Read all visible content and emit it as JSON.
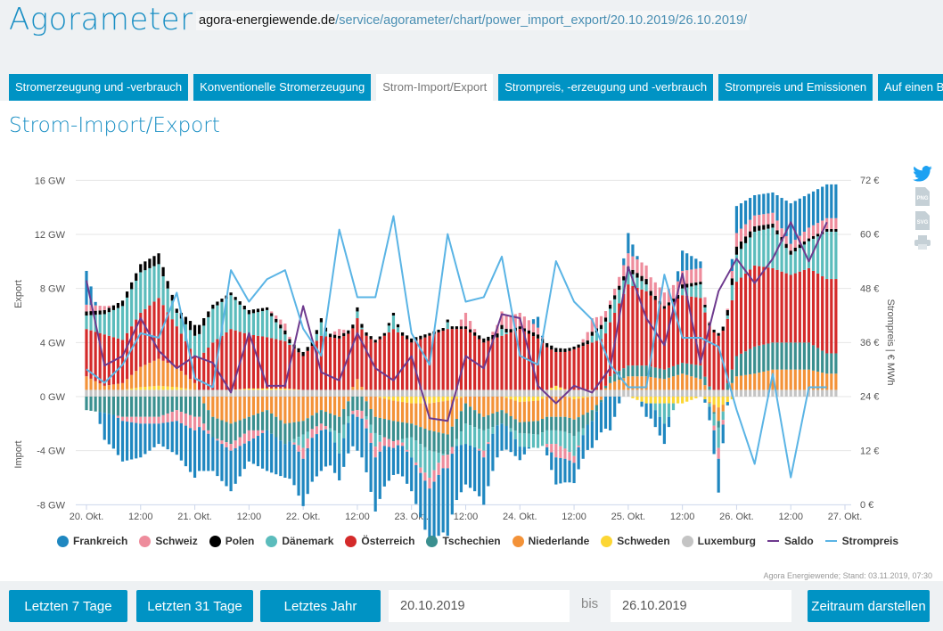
{
  "header": {
    "logo": "Agorameter",
    "url_domain": "agora-energiewende.de",
    "url_path": "/service/agorameter/chart/power_import_export/20.10.2019/26.10.2019/"
  },
  "tabs": [
    {
      "label": "Stromerzeugung und -verbrauch",
      "active": false
    },
    {
      "label": "Konventionelle Stromerzeugung",
      "active": false
    },
    {
      "label": "Strom-Import/Export",
      "active": true
    },
    {
      "label": "Strompreis, -erzeugung und -verbrauch",
      "active": false
    },
    {
      "label": "Strompreis und Emissionen",
      "active": false
    },
    {
      "label": "Auf einen Blick",
      "active": false
    }
  ],
  "page_title": "Strom-Import/Export",
  "side_icons": [
    "twitter-icon",
    "png-download-icon",
    "svg-download-icon",
    "print-icon"
  ],
  "side_labels": {
    "png": "PNG",
    "svg": "SVG"
  },
  "credits": "Agora Energiewende; Stand: 03.11.2019, 07:30",
  "chart_data": {
    "type": "bar",
    "stacked": true,
    "x_interval_hours": 4,
    "x_start": "20.10.2019 00:00",
    "x_ticks": [
      "20. Okt.",
      "12:00",
      "21. Okt.",
      "12:00",
      "22. Okt.",
      "12:00",
      "23. Okt.",
      "12:00",
      "24. Okt.",
      "12:00",
      "25. Okt.",
      "12:00",
      "26. Okt.",
      "12:00",
      "27. Okt."
    ],
    "y_left": {
      "label_top": "Export",
      "label_bottom": "Import",
      "ticks": [
        "16 GW",
        "12 GW",
        "8 GW",
        "4 GW",
        "0 GW",
        "-4 GW",
        "-8 GW"
      ],
      "range": [
        -8,
        16
      ],
      "unit": "GW"
    },
    "y_right": {
      "label": "Strompreis | € MWh",
      "ticks": [
        "72 €",
        "60 €",
        "48 €",
        "36 €",
        "24 €",
        "12 €",
        "0 €"
      ],
      "range": [
        0,
        72
      ]
    },
    "grid": true,
    "legend_position": "bottom",
    "series": [
      {
        "name": "Frankreich",
        "color": "#1f87c0",
        "values": [
          2.5,
          -2,
          -3,
          -2.5,
          -1.5,
          -2.5,
          -3.5,
          -2.5,
          -3,
          -1.5,
          -3,
          -2.5,
          -3.5,
          -3,
          -2,
          -2.5,
          -4,
          -2,
          -2.5,
          -4,
          -5,
          -3,
          -3.5,
          -2,
          -1,
          0.8,
          -2,
          -1.5,
          -2,
          -2.5,
          1.5,
          -1,
          -1.5,
          1.5,
          0.5,
          -2.5,
          2,
          1.5,
          1.5,
          3.0,
          2.5,
          2.5
        ]
      },
      {
        "name": "Schweiz",
        "color": "#ee8c9c",
        "values": [
          0.5,
          0.3,
          -0.3,
          -0.5,
          -0.5,
          -0.8,
          -1.0,
          0,
          -0.5,
          -0.8,
          0,
          0.5,
          -0.8,
          -0.5,
          0.5,
          -0.5,
          -0.8,
          -0.5,
          0,
          -0.8,
          -1.0,
          1.0,
          -0.5,
          1.0,
          1.0,
          0.5,
          -1.0,
          -0.5,
          1.0,
          0.3,
          1.0,
          1.0,
          1.0,
          1.0,
          1.0,
          -0.8,
          1.0,
          0.8,
          0.8,
          0.5,
          0.8,
          0.8
        ]
      },
      {
        "name": "Polen",
        "color": "#000000",
        "values": [
          0.3,
          0.3,
          0.4,
          0.6,
          0.8,
          0.3,
          0.8,
          0.3,
          0.2,
          0.3,
          0.2,
          0.3,
          0.3,
          0.3,
          0.2,
          0.3,
          0.2,
          0.2,
          0.3,
          0.2,
          0.2,
          0.2,
          0.3,
          0.3,
          0.2,
          0.3,
          0.3,
          0.2,
          0.3,
          0.3,
          0.3,
          0.4,
          0.2,
          0.3,
          0.2,
          0.2,
          0.6,
          0.4,
          0.3,
          0.3,
          0.2,
          0.2
        ]
      },
      {
        "name": "Dänemark",
        "color": "#5bbcbc",
        "values": [
          1.0,
          1.5,
          2.5,
          3.0,
          2.5,
          1.0,
          1.5,
          2.5,
          2.5,
          1.5,
          2.0,
          0.5,
          -1.0,
          1.0,
          -1.5,
          0.5,
          -1.0,
          1.0,
          -1.5,
          -2,
          0.5,
          -1.5,
          -1.5,
          0.5,
          -1.0,
          -1,
          -1.0,
          -1.5,
          0.5,
          1.0,
          1.0,
          0.5,
          -1.5,
          0.5,
          1,
          -1.5,
          2.0,
          2.5,
          3.0,
          1.5,
          2.0,
          3.5
        ]
      },
      {
        "name": "Österreich",
        "color": "#d42a2a",
        "values": [
          3.5,
          3.8,
          3.2,
          4.0,
          4.5,
          3.0,
          2.0,
          3.5,
          4.5,
          4.0,
          3.8,
          3.5,
          2.5,
          4.0,
          3.8,
          4.5,
          3.5,
          4.5,
          3.5,
          4.0,
          4.5,
          4.5,
          3.5,
          4.0,
          4.5,
          3.8,
          2.5,
          3.0,
          3.5,
          4.0,
          6.0,
          5.5,
          4.5,
          5.0,
          5.0,
          4.0,
          5.5,
          6.0,
          5.5,
          5.0,
          5.5,
          5.5
        ]
      },
      {
        "name": "Tschechien",
        "color": "#3a8f8f",
        "values": [
          -1,
          -1.2,
          -1.5,
          -1.5,
          -1.5,
          -1,
          -1.5,
          -1.5,
          -1.5,
          -1,
          -1.5,
          -1.5,
          -1,
          -1,
          -1.2,
          -1,
          -1.2,
          -1.5,
          -1,
          -1.5,
          -1.5,
          -1.5,
          -1,
          -1,
          -0.8,
          -1,
          -1,
          -1.2,
          -0.8,
          0.5,
          0.8,
          0.8,
          0.7,
          0.8,
          1.0,
          -0.5,
          1.5,
          2.0,
          2.0,
          2.0,
          2.0,
          1.5
        ]
      },
      {
        "name": "Niederlande",
        "color": "#f39238",
        "values": [
          1,
          0.3,
          0.5,
          1.5,
          2.0,
          1.5,
          0.5,
          -1.5,
          -2,
          -1.5,
          -1,
          -2,
          -1.8,
          -1,
          -1.5,
          0.8,
          -1.5,
          -1.5,
          -1.5,
          -2,
          -2.5,
          -0.5,
          -1.5,
          -1,
          -1.5,
          -1.5,
          -1.5,
          -1.5,
          -1,
          0.5,
          1.0,
          1.0,
          0.8,
          1.2,
          0.8,
          -1.0,
          1.0,
          1.2,
          1.5,
          1.5,
          1.5,
          1.2
        ]
      },
      {
        "name": "Schweden",
        "color": "#fcd634",
        "values": [
          0,
          0,
          0,
          0.2,
          0.3,
          0.2,
          0,
          0,
          0,
          0.1,
          0.1,
          0.1,
          0,
          0,
          0,
          0,
          0,
          -0.3,
          -0.5,
          -0.5,
          -0.3,
          0,
          0,
          0,
          -0.4,
          -0.3,
          0.3,
          -0.2,
          0,
          0,
          0,
          -0.5,
          -0.5,
          -0.5,
          0,
          -0.8,
          0,
          0,
          0,
          0,
          0,
          0
        ]
      },
      {
        "name": "Luxemburg",
        "color": "#c4c4c4",
        "values": [
          0.5,
          0.5,
          0.5,
          0.5,
          0.5,
          0.5,
          0.5,
          0.5,
          0.5,
          0.5,
          0.5,
          0.5,
          0.5,
          0.5,
          0.5,
          0.5,
          0.5,
          0.5,
          0.5,
          0.5,
          0.5,
          0.5,
          0.5,
          0.5,
          0.5,
          0.5,
          0.5,
          0.5,
          0.5,
          0.5,
          0.5,
          0.5,
          0.5,
          0.5,
          0.5,
          0.5,
          0.5,
          0.5,
          0.5,
          0.5,
          0.5,
          0.5
        ]
      }
    ],
    "lines": [
      {
        "name": "Saldo",
        "color": "#6e3a8e",
        "axis": "left",
        "values": [
          8.6,
          2.3,
          3.0,
          5.8,
          3.4,
          2.1,
          3.0,
          2.5,
          0.3,
          4.7,
          0.8,
          0.8,
          6.7,
          1.8,
          1.2,
          4.7,
          2.1,
          1.2,
          3.0,
          -1.6,
          -1.8,
          3.0,
          2.1,
          6.1,
          5.8,
          0.8,
          -0.5,
          0.8,
          0.3,
          2.1,
          9.6,
          5.8,
          3.8,
          9.1,
          2.5,
          7.8,
          10.2,
          8.4,
          10.2,
          12.9,
          10.0,
          12.9
        ]
      },
      {
        "name": "Strompreis",
        "color": "#5ab4e5",
        "axis": "right",
        "values": [
          30,
          27,
          31,
          38,
          37,
          47,
          28,
          26,
          52,
          45,
          50,
          52,
          39,
          33,
          61,
          46,
          46,
          64,
          38,
          31,
          60,
          45,
          46,
          55,
          33,
          31,
          54,
          45,
          41,
          31,
          26,
          26,
          51,
          37,
          37,
          35,
          21,
          9,
          29,
          6,
          26,
          26
        ]
      }
    ]
  },
  "footer": {
    "btn_7": "Letzten 7 Tage",
    "btn_31": "Letzten 31 Tage",
    "btn_year": "Letztes Jahr",
    "from_value": "20.10.2019",
    "bis": "bis",
    "to_value": "26.10.2019",
    "submit": "Zeitraum darstellen"
  }
}
